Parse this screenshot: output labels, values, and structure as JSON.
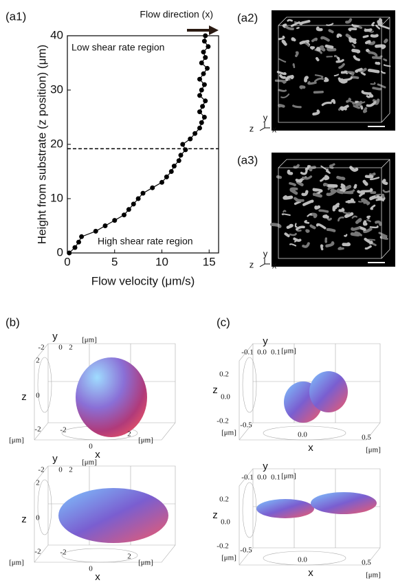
{
  "chart_data": {
    "type": "line",
    "label": "(a1)",
    "xlabel": "Flow velocity (μm/s)",
    "ylabel": "Height from substrate (z position) (μm)",
    "annotations": [
      "Low shear rate region",
      "High shear rate region",
      "Flow direction (x)"
    ],
    "x": [
      0.2,
      0.8,
      1.2,
      1.5,
      3,
      4,
      5,
      6,
      6.5,
      7,
      7.5,
      8,
      9,
      10,
      10.5,
      11,
      11.3,
      11.8,
      12,
      12.5,
      12.2,
      13,
      13.5,
      14,
      14.2,
      14.5,
      14,
      14.3,
      14.6,
      14,
      14.2,
      14.5,
      14,
      14.4,
      14.8,
      14.2,
      14.6,
      14.4,
      14.9,
      14.5,
      14.6
    ],
    "values": [
      0,
      1,
      2,
      3,
      4,
      5,
      6,
      7,
      8,
      9,
      10,
      11,
      12,
      13,
      14,
      15,
      16,
      17,
      18,
      19,
      20,
      21,
      22,
      23,
      24,
      25,
      26,
      27,
      28,
      29,
      30,
      31,
      32,
      33,
      34,
      35,
      36,
      37,
      38,
      39,
      40
    ],
    "color": "#000000",
    "hline": 19.2,
    "xlim": [
      0,
      16
    ],
    "xticks": [
      0,
      5,
      10,
      15
    ],
    "ylim": [
      0,
      40
    ],
    "yticks": [
      0,
      10,
      20,
      30,
      40
    ]
  },
  "images": [
    {
      "label": "(a2)",
      "axes": [
        "y",
        "z",
        "x"
      ]
    },
    {
      "label": "(a3)",
      "axes": [
        "y",
        "z",
        "x"
      ]
    }
  ],
  "panels": [
    {
      "label": "(b)",
      "plots": [
        {
          "texts": [
            "y",
            "-2",
            "0",
            "2",
            "[μm]",
            "2",
            "z",
            "0",
            "-2",
            "[μm]",
            "-2",
            "0",
            "x",
            "2",
            "[μm]"
          ]
        },
        {
          "texts": [
            "y",
            "-2",
            "0",
            "2",
            "[μm]",
            "2",
            "z",
            "0",
            "-2",
            "[μm]",
            "-2",
            "0",
            "x",
            "2",
            "[μm]"
          ]
        }
      ]
    },
    {
      "label": "(c)",
      "plots": [
        {
          "texts": [
            "y",
            "-0.1",
            "0.0",
            "0.1",
            "[μm]",
            "0.2",
            "z",
            "0.0",
            "-0.2",
            "[μm]",
            "-0.5",
            "0.0",
            "x",
            "0.5",
            "[μm]"
          ]
        },
        {
          "texts": [
            "y",
            "-0.1",
            "0.0",
            "0.1",
            "[μm]",
            "0.2",
            "z",
            "0.0",
            "-0.2",
            "[μm]",
            "-0.5",
            "0.0",
            "x",
            "0.5",
            "[μm]"
          ]
        }
      ]
    }
  ]
}
